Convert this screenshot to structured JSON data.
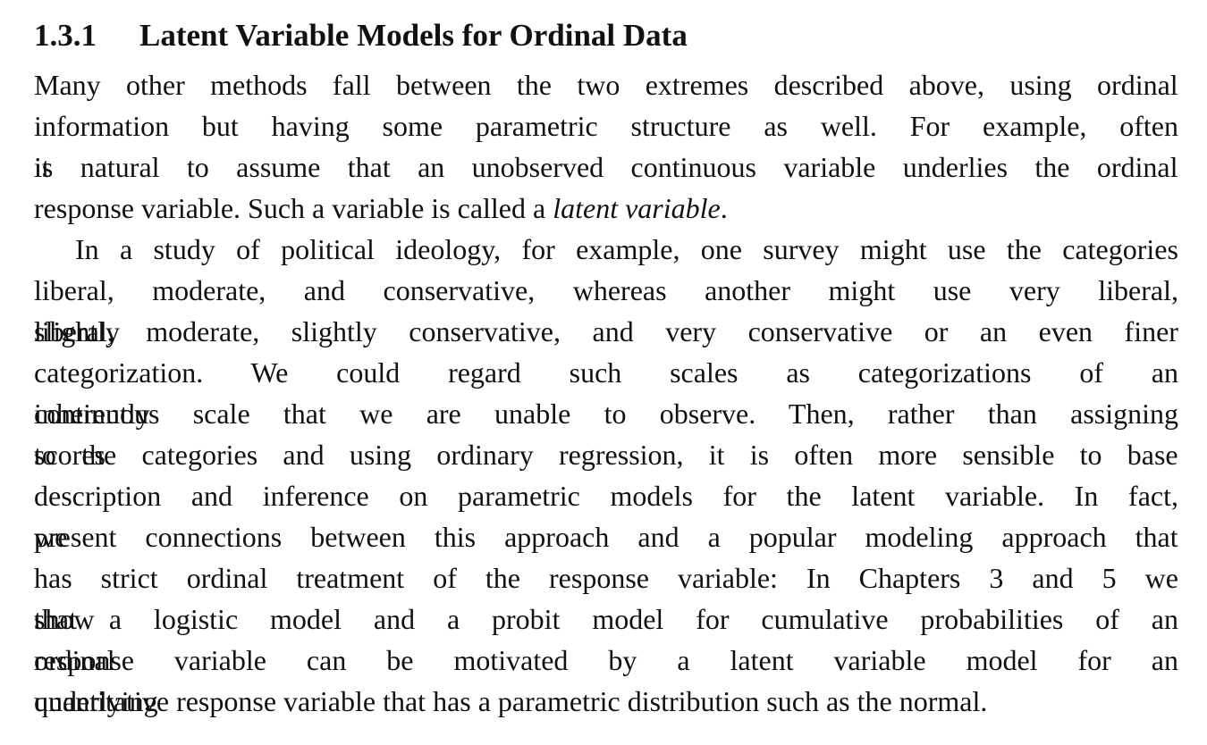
{
  "section": {
    "number": "1.3.1",
    "title": "Latent Variable Models for Ordinal Data"
  },
  "paragraph1": {
    "lines": [
      "Many other methods fall between the two extremes described above, using ordinal",
      "information but having some parametric structure as well. For example, often it",
      "is natural to assume that an unobserved continuous variable underlies the ordinal"
    ],
    "last_line_prefix": "response variable. Such a variable is called a ",
    "emphasis": "latent variable",
    "last_line_suffix": "."
  },
  "paragraph2": {
    "lines": [
      "In a study of political ideology, for example, one survey might use the categories",
      "liberal, moderate, and conservative, whereas another might use very liberal, slightly",
      "liberal, moderate, slightly conservative, and very conservative or an even finer",
      "categorization. We could regard such scales as categorizations of an inherently",
      "continuous scale that we are unable to observe. Then, rather than assigning scores",
      "to the categories and using ordinary regression, it is often more sensible to base",
      "description and inference on parametric models for the latent variable. In fact, we",
      "present connections between this approach and a popular modeling approach that",
      "has strict ordinal treatment of the response variable: In Chapters 3 and 5 we show",
      "that a logistic model and a probit model for cumulative probabilities of an ordinal",
      "response variable can be motivated by a latent variable model for an underlying",
      "quantitative response variable that has a parametric distribution such as the normal."
    ]
  }
}
